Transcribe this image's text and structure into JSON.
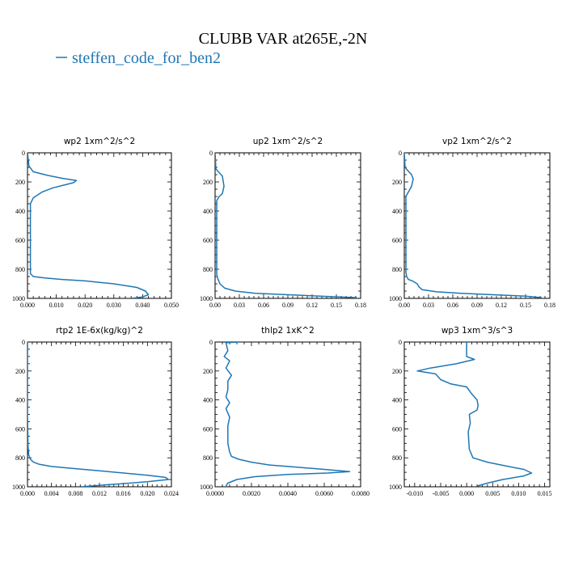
{
  "figure": {
    "title": "CLUBB VAR at265E,-2N",
    "legend": [
      {
        "label": "steffen_code_for_ben2",
        "color": "#1f77b4"
      }
    ]
  },
  "chart_data": [
    {
      "type": "line",
      "title": "wp2   1xm^2/s^2",
      "xlim": [
        0,
        0.05
      ],
      "ylim": [
        1000,
        0
      ],
      "xticks": [
        "0.000",
        "0.010",
        "0.020",
        "0.030",
        "0.040",
        "0.050"
      ],
      "yticks": [
        "0",
        "200",
        "400",
        "600",
        "800",
        "1000"
      ],
      "series": [
        {
          "name": "steffen_code_for_ben2",
          "x": [
            0.0,
            0.0005,
            0.002,
            0.007,
            0.012,
            0.017,
            0.016,
            0.013,
            0.009,
            0.005,
            0.002,
            0.001,
            0.001,
            0.001,
            0.001,
            0.001,
            0.001,
            0.002,
            0.006,
            0.012,
            0.02,
            0.03,
            0.038,
            0.041,
            0.042,
            0.04,
            0.036
          ],
          "y": [
            0,
            90,
            130,
            155,
            175,
            190,
            205,
            220,
            240,
            270,
            310,
            350,
            430,
            560,
            700,
            800,
            830,
            850,
            860,
            870,
            880,
            900,
            925,
            950,
            975,
            990,
            1000
          ]
        }
      ]
    },
    {
      "type": "line",
      "title": "up2   1xm^2/s^2",
      "xlim": [
        0,
        0.18
      ],
      "ylim": [
        1000,
        0
      ],
      "xticks": [
        "0.00",
        "0.03",
        "0.06",
        "0.09",
        "0.12",
        "0.15",
        "0.18"
      ],
      "yticks": [
        "0",
        "200",
        "400",
        "600",
        "800",
        "1000"
      ],
      "series": [
        {
          "name": "steffen_code_for_ben2",
          "x": [
            0.0,
            0.001,
            0.004,
            0.009,
            0.011,
            0.009,
            0.005,
            0.002,
            0.002,
            0.002,
            0.002,
            0.003,
            0.006,
            0.012,
            0.025,
            0.05,
            0.09,
            0.13,
            0.175
          ],
          "y": [
            0,
            110,
            130,
            160,
            230,
            280,
            300,
            330,
            500,
            700,
            830,
            860,
            900,
            930,
            950,
            965,
            975,
            985,
            995
          ]
        }
      ]
    },
    {
      "type": "line",
      "title": "vp2   1xm^2/s^2",
      "xlim": [
        0,
        0.18
      ],
      "ylim": [
        1000,
        0
      ],
      "xticks": [
        "0.00",
        "0.03",
        "0.06",
        "0.09",
        "0.12",
        "0.15",
        "0.18"
      ],
      "yticks": [
        "0",
        "200",
        "400",
        "600",
        "800",
        "1000"
      ],
      "series": [
        {
          "name": "steffen_code_for_ben2",
          "x": [
            0.0,
            0.001,
            0.004,
            0.009,
            0.011,
            0.009,
            0.005,
            0.002,
            0.002,
            0.002,
            0.002,
            0.003,
            0.005,
            0.01,
            0.016,
            0.018,
            0.022,
            0.04,
            0.07,
            0.11,
            0.15,
            0.17
          ],
          "y": [
            0,
            100,
            120,
            150,
            180,
            230,
            270,
            300,
            500,
            700,
            820,
            850,
            870,
            880,
            900,
            920,
            940,
            955,
            965,
            975,
            985,
            995
          ]
        }
      ]
    },
    {
      "type": "line",
      "title": "rtp2   1E-6x(kg/kg)^2",
      "xlim": [
        0,
        0.024
      ],
      "ylim": [
        1000,
        0
      ],
      "xticks": [
        "0.000",
        "0.004",
        "0.008",
        "0.012",
        "0.016",
        "0.020",
        "0.024"
      ],
      "yticks": [
        "0",
        "200",
        "400",
        "600",
        "800",
        "1000"
      ],
      "series": [
        {
          "name": "steffen_code_for_ben2",
          "x": [
            0.0,
            0.0,
            0.0001,
            0.0002,
            0.0005,
            0.001,
            0.002,
            0.004,
            0.008,
            0.012,
            0.016,
            0.02,
            0.023,
            0.0235,
            0.02,
            0.016,
            0.012,
            0.009
          ],
          "y": [
            0,
            500,
            720,
            780,
            810,
            830,
            845,
            860,
            875,
            890,
            905,
            920,
            935,
            950,
            965,
            978,
            990,
            1000
          ]
        }
      ]
    },
    {
      "type": "line",
      "title": "thlp2   1xK^2",
      "xlim": [
        0,
        0.008
      ],
      "ylim": [
        1000,
        0
      ],
      "xticks": [
        "0.0000",
        "0.0020",
        "0.0040",
        "0.0060",
        "0.0080"
      ],
      "yticks": [
        "0",
        "200",
        "400",
        "600",
        "800",
        "1000"
      ],
      "series": [
        {
          "name": "steffen_code_for_ben2",
          "x": [
            0.0013,
            0.0006,
            0.0007,
            0.0005,
            0.0008,
            0.0006,
            0.0009,
            0.0007,
            0.0007,
            0.0006,
            0.0008,
            0.0006,
            0.0008,
            0.0007,
            0.0007,
            0.0007,
            0.0008,
            0.0009,
            0.0013,
            0.002,
            0.003,
            0.0045,
            0.006,
            0.0074,
            0.0062,
            0.004,
            0.0022,
            0.0012,
            0.0007,
            0.0006
          ],
          "y": [
            0,
            5,
            60,
            100,
            130,
            180,
            230,
            270,
            330,
            380,
            420,
            460,
            520,
            580,
            640,
            700,
            760,
            790,
            810,
            830,
            850,
            865,
            880,
            895,
            905,
            915,
            930,
            950,
            975,
            995
          ]
        }
      ]
    },
    {
      "type": "line",
      "title": "wp3   1xm^3/s^3",
      "xlim": [
        -0.012,
        0.016
      ],
      "ylim": [
        1000,
        0
      ],
      "xticks": [
        "-0.010",
        "-0.005",
        "0.000",
        "0.005",
        "0.010",
        "0.015"
      ],
      "yticks": [
        "0",
        "200",
        "400",
        "600",
        "800",
        "1000"
      ],
      "series": [
        {
          "name": "steffen_code_for_ben2",
          "x": [
            0.0,
            0.0,
            0.0015,
            -0.002,
            -0.007,
            -0.0095,
            -0.006,
            -0.005,
            -0.003,
            0.0,
            0.001,
            0.002,
            0.0022,
            0.002,
            0.0005,
            0.0007,
            0.0003,
            0.0004,
            0.0005,
            0.0012,
            0.004,
            0.008,
            0.011,
            0.0125,
            0.011,
            0.007,
            0.004,
            0.002
          ],
          "y": [
            0,
            100,
            120,
            150,
            180,
            200,
            220,
            260,
            290,
            310,
            360,
            400,
            440,
            470,
            500,
            560,
            620,
            680,
            740,
            800,
            830,
            860,
            880,
            905,
            925,
            950,
            975,
            995
          ]
        }
      ]
    }
  ]
}
